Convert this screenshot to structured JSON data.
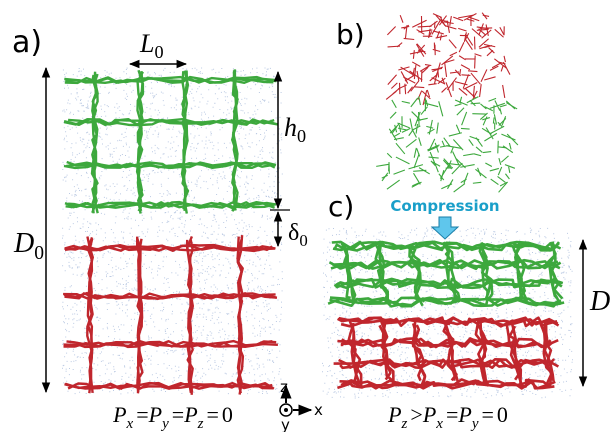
{
  "panels": {
    "a": {
      "label": "a)",
      "spacing": {
        "base": "L",
        "sub": "0"
      },
      "height": {
        "base": "h",
        "sub": "0"
      },
      "gap": {
        "base": "δ",
        "sub": "0"
      },
      "total": {
        "base": "D",
        "sub": "0"
      },
      "condition": {
        "terms": [
          {
            "base": "P",
            "sub": "x"
          },
          {
            "base": "P",
            "sub": "y"
          },
          {
            "base": "P",
            "sub": "z"
          }
        ],
        "operators": [
          "=",
          "=",
          "="
        ],
        "rhs": "0"
      }
    },
    "b": {
      "label": "b)"
    },
    "c": {
      "label": "c)",
      "annotation": "Compression",
      "total": {
        "base": "D"
      },
      "condition": {
        "terms": [
          {
            "base": "P",
            "sub": "z"
          },
          {
            "base": "P",
            "sub": "x"
          },
          {
            "base": "P",
            "sub": "y"
          }
        ],
        "operators": [
          ">",
          "=",
          "="
        ],
        "rhs": "0"
      }
    }
  },
  "axes": {
    "z": "z",
    "x": "x",
    "y": "y"
  }
}
